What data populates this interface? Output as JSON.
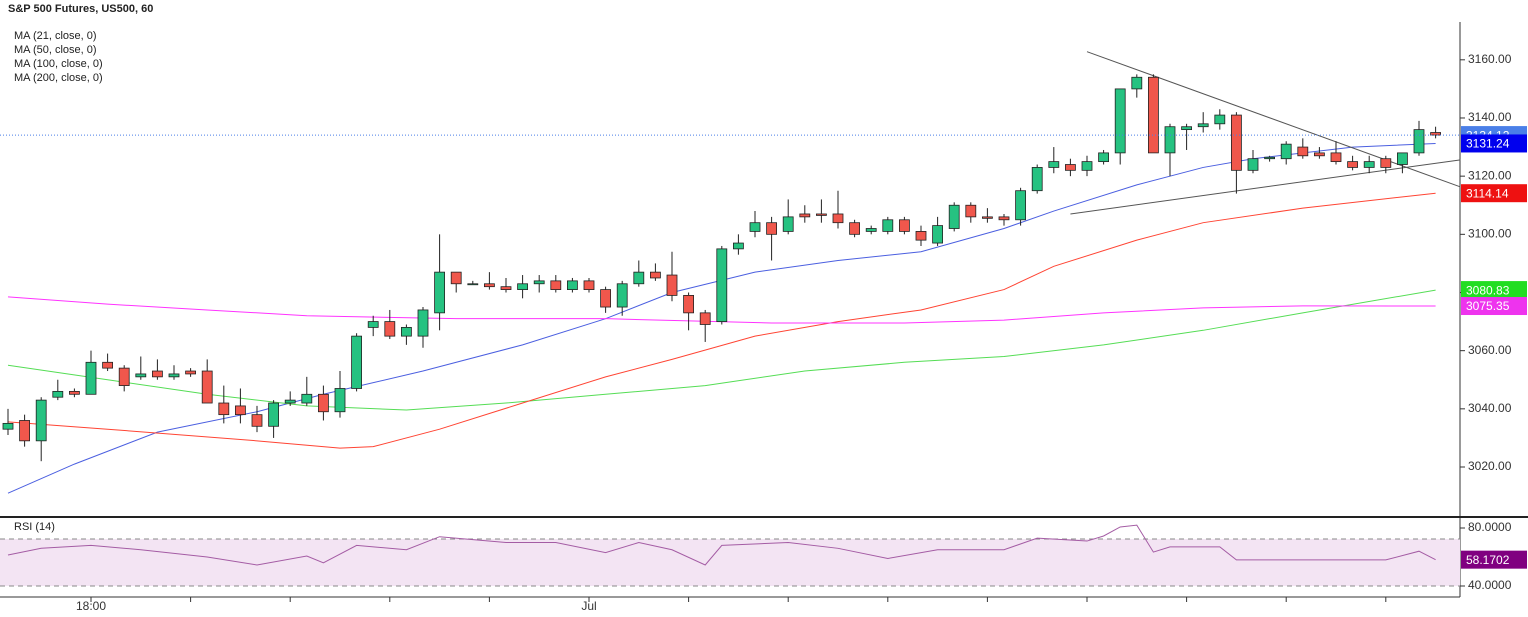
{
  "chart_data": [
    {
      "type": "candlestick",
      "title": "S&P 500 Futures, US500, 60",
      "categories": [
        null,
        null,
        null,
        null,
        null,
        "18:00",
        null,
        null,
        null,
        null,
        null,
        null,
        null,
        null,
        null,
        null,
        null,
        null,
        null,
        null,
        null,
        null,
        null,
        null,
        null,
        null,
        null,
        null,
        null,
        null,
        null,
        null,
        null,
        null,
        null,
        "Jul",
        null,
        null,
        null,
        null,
        null,
        null,
        null,
        null,
        null,
        null,
        null,
        null,
        null,
        null,
        null,
        null,
        null,
        null,
        null,
        null,
        null,
        null,
        null,
        null,
        null,
        null,
        null,
        null,
        null,
        null,
        null,
        null,
        null,
        null,
        null,
        null,
        null,
        null,
        null,
        null,
        null,
        null,
        null,
        null,
        null,
        null,
        null,
        null,
        null,
        null,
        null
      ],
      "open": [
        3033,
        3036,
        3029,
        3044,
        3046,
        3045,
        3056,
        3054,
        3051,
        3053,
        3051,
        3053,
        3053,
        3042,
        3041,
        3038,
        3034,
        3042,
        3042,
        3045,
        3039,
        3047,
        3068,
        3070,
        3065,
        3065,
        3073,
        3087,
        3083,
        3083,
        3082,
        3081,
        3083,
        3084,
        3081,
        3084,
        3081,
        3075,
        3083,
        3087,
        3086,
        3079,
        3073,
        3070,
        3095,
        3101,
        3104,
        3101,
        3107,
        3107,
        3107,
        3104,
        3101,
        3101,
        3105,
        3101,
        3097,
        3102,
        3110,
        3106,
        3106,
        3105,
        3115,
        3123,
        3124,
        3122,
        3125,
        3128,
        3150,
        3154,
        3128,
        3136,
        3137,
        3138,
        3141,
        3122,
        3126,
        3126,
        3130,
        3128,
        3128,
        3125,
        3123,
        3126,
        3124,
        3128,
        3135
      ],
      "high": [
        3040,
        3038,
        3044,
        3050,
        3047,
        3060,
        3059,
        3055,
        3058,
        3057,
        3055,
        3054,
        3057,
        3048,
        3047,
        3041,
        3043,
        3046,
        3051,
        3048,
        3053,
        3066,
        3072,
        3074,
        3069,
        3075,
        3100,
        3087,
        3084,
        3087,
        3085,
        3086,
        3086,
        3086,
        3085,
        3085,
        3082,
        3084,
        3091,
        3090,
        3094,
        3080,
        3074,
        3096,
        3100,
        3108,
        3106,
        3112,
        3110,
        3112,
        3115,
        3105,
        3103,
        3106,
        3106,
        3103,
        3106,
        3111,
        3111,
        3109,
        3107,
        3116,
        3124,
        3130,
        3126,
        3127,
        3129,
        3150,
        3155,
        3155,
        3138,
        3138,
        3142,
        3143,
        3142,
        3129,
        3127,
        3132,
        3133,
        3130,
        3132,
        3127,
        3127,
        3127,
        3128,
        3139,
        3137
      ],
      "low": [
        3031,
        3027,
        3022,
        3043,
        3044,
        3045,
        3053,
        3046,
        3050,
        3050,
        3050,
        3051,
        3042,
        3035,
        3035,
        3032,
        3030,
        3041,
        3041,
        3036,
        3037,
        3046,
        3065,
        3064,
        3062,
        3061,
        3067,
        3080,
        3083,
        3081,
        3080,
        3078,
        3080,
        3080,
        3080,
        3080,
        3073,
        3072,
        3082,
        3084,
        3077,
        3067,
        3063,
        3069,
        3093,
        3099,
        3091,
        3100,
        3104,
        3104,
        3102,
        3099,
        3100,
        3100,
        3100,
        3096,
        3096,
        3101,
        3104,
        3104,
        3103,
        3103,
        3114,
        3121,
        3120,
        3120,
        3124,
        3124,
        3147,
        3128,
        3120,
        3129,
        3135,
        3136,
        3114,
        3121,
        3125,
        3124,
        3126,
        3126,
        3124,
        3122,
        3121,
        3121,
        3121,
        3127,
        3133
      ],
      "close": [
        3035,
        3029,
        3043,
        3046,
        3045,
        3056,
        3054,
        3048,
        3052,
        3051,
        3052,
        3052,
        3042,
        3038,
        3038,
        3034,
        3042,
        3043,
        3045,
        3039,
        3047,
        3065,
        3070,
        3065,
        3068,
        3074,
        3087,
        3083,
        3083,
        3082,
        3081,
        3083,
        3084,
        3081,
        3084,
        3081,
        3075,
        3083,
        3087,
        3085,
        3079,
        3073,
        3069,
        3095,
        3097,
        3104,
        3100,
        3106,
        3106,
        3106.5,
        3104,
        3100,
        3102,
        3105,
        3101,
        3098,
        3103,
        3110,
        3106,
        3105.5,
        3105,
        3115,
        3123,
        3125,
        3122,
        3125,
        3128,
        3150,
        3154,
        3128,
        3137,
        3137,
        3138,
        3141,
        3122,
        3126,
        3126.5,
        3131,
        3127,
        3127,
        3125,
        3123,
        3125,
        3123,
        3128,
        3136,
        3134.12
      ],
      "up_color": "#26c281",
      "down_color": "#f0574c",
      "ylim": [
        3003.5,
        3173
      ],
      "yticks": [
        {
          "value": 3020,
          "label": "3020.00"
        },
        {
          "value": 3040,
          "label": "3040.00"
        },
        {
          "value": 3060,
          "label": "3060.00"
        },
        {
          "value": 3080,
          "label": "3080.00"
        },
        {
          "value": 3100,
          "label": "3100.00"
        },
        {
          "value": 3120,
          "label": "3120.00"
        },
        {
          "value": 3140,
          "label": "3140.00"
        },
        {
          "value": 3160,
          "label": "3160.00"
        }
      ],
      "series": [
        {
          "name": "MA (21, close, 0)",
          "color": "#4b5fe0",
          "x": [
            0,
            4,
            9,
            15,
            19,
            25,
            31,
            36,
            40,
            45,
            50,
            55,
            60,
            63,
            68,
            72,
            75,
            81,
            86
          ],
          "values": [
            3011,
            3021,
            3032,
            3039,
            3045,
            3053,
            3062,
            3071,
            3080,
            3087,
            3091,
            3094,
            3102,
            3108,
            3117,
            3123,
            3126,
            3130,
            3131.24
          ],
          "last_value": 3131.24,
          "tag_color": "#0000ee"
        },
        {
          "name": "MA (50, close, 0)",
          "color": "#55dd55",
          "x": [
            0,
            6,
            12,
            18,
            24,
            30,
            36,
            42,
            48,
            54,
            60,
            66,
            72,
            78,
            86
          ],
          "values": [
            3055,
            3050,
            3045,
            3041,
            3039.6,
            3042,
            3045,
            3048,
            3053,
            3056,
            3058,
            3062,
            3067,
            3073,
            3080.83
          ],
          "last_value": 3080.83,
          "tag_color": "#22dd22"
        },
        {
          "name": "MA (100, close, 0)",
          "color": "#ff4433",
          "x": [
            0,
            6,
            15,
            20,
            22,
            26,
            31,
            36,
            40,
            45,
            50,
            55,
            60,
            63,
            68,
            72,
            78,
            86
          ],
          "values": [
            3035.5,
            3033,
            3029,
            3026.5,
            3027,
            3033,
            3042,
            3051,
            3057,
            3065,
            3070,
            3074,
            3081,
            3089,
            3098,
            3104,
            3109,
            3114.14
          ],
          "last_value": 3114.14,
          "tag_color": "#ee1111"
        },
        {
          "name": "MA (200, close, 0)",
          "color": "#ff33ff",
          "x": [
            0,
            6,
            12,
            18,
            27,
            36,
            46,
            54,
            60,
            66,
            72,
            78,
            86
          ],
          "values": [
            3078.5,
            3076,
            3074,
            3072,
            3071,
            3071,
            3069.5,
            3069.5,
            3070.5,
            3073,
            3074.7,
            3075.4,
            3075.35
          ],
          "last_value": 3075.35,
          "tag_color": "#ee33ee"
        }
      ],
      "trendlines": [
        {
          "color": "#555555",
          "x": [
            65,
            87.5
          ],
          "values": [
            3162.8,
            3116.3
          ]
        },
        {
          "color": "#555555",
          "x": [
            64,
            87.5
          ],
          "values": [
            3107,
            3125.6
          ]
        }
      ],
      "last_price": 3134.12,
      "last_price_color": "#4a7fe8"
    },
    {
      "type": "line",
      "title": "RSI (14)",
      "ylim": [
        33.8,
        86.9
      ],
      "yticks": [
        {
          "value": 40,
          "label": "40.0000"
        },
        {
          "value": 80,
          "label": "80.0000"
        }
      ],
      "bands": [
        72.4,
        40
      ],
      "band_color": "#f3e4f3",
      "series": [
        {
          "color": "#a45ca4",
          "x": [
            0,
            2,
            5,
            8,
            12,
            15,
            18,
            19,
            21,
            24,
            26,
            30,
            33,
            36,
            38,
            40,
            42,
            43,
            47,
            50,
            53,
            56,
            60,
            62,
            65,
            66,
            67,
            68,
            69,
            70,
            73,
            74,
            78,
            83,
            85,
            86
          ],
          "values": [
            61.4,
            66,
            68,
            65,
            60,
            54.5,
            60.7,
            56,
            68,
            65,
            74,
            70,
            70,
            63,
            70,
            65,
            54.5,
            68,
            70,
            66,
            59,
            65,
            65,
            73,
            71,
            74.5,
            80.7,
            82,
            63.4,
            67,
            67,
            58,
            58,
            58,
            64,
            58.1702
          ],
          "last_value": 58.1702,
          "tag_color": "#800080"
        }
      ]
    }
  ]
}
